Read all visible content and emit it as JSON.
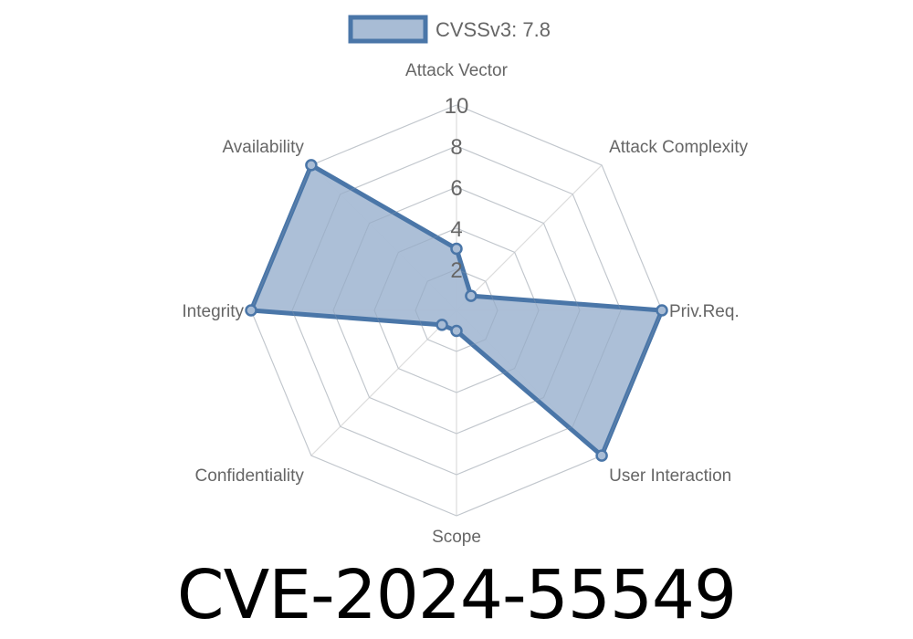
{
  "chart_data": {
    "type": "radar",
    "axes": [
      "Attack Vector",
      "Attack Complexity",
      "Priv.Req.",
      "User Interaction",
      "Scope",
      "Confidentiality",
      "Integrity",
      "Availability"
    ],
    "series": [
      {
        "name": "CVSSv3: 7.8",
        "values": [
          3,
          1,
          10,
          10,
          1,
          1,
          10,
          10
        ]
      }
    ],
    "rlim": [
      0,
      10
    ],
    "ticks": [
      "2",
      "4",
      "6",
      "8",
      "10"
    ],
    "tick_values": [
      2,
      4,
      6,
      8,
      10
    ],
    "grid": true,
    "legend": "top",
    "colors": {
      "line": "#4a76a8",
      "fill": "#a8bcd5",
      "grid": "#dddddd",
      "text": "#666666"
    }
  },
  "title": "CVE-2024-55549"
}
